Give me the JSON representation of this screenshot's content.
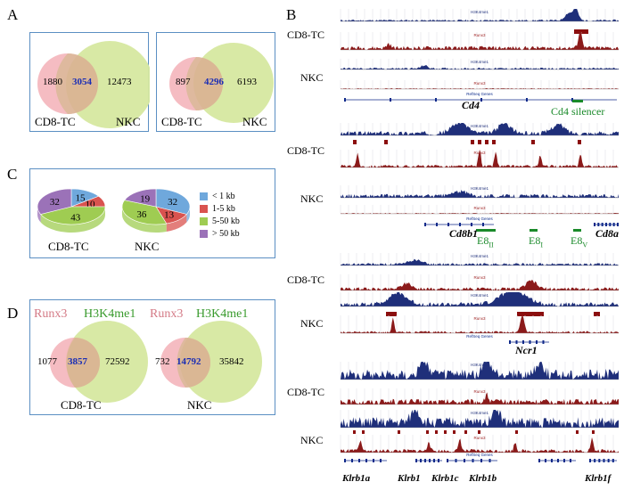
{
  "panels": {
    "A": "A",
    "B": "B",
    "C": "C",
    "D": "D"
  },
  "panelA": {
    "left": {
      "only": "1880",
      "overlap": "3054",
      "other": "12473",
      "label_left": "CD8-TC",
      "label_right": "NKC"
    },
    "right": {
      "only": "897",
      "overlap": "4296",
      "other": "6193",
      "label_left": "CD8-TC",
      "label_right": "NKC"
    }
  },
  "panelC": {
    "legend": [
      "< 1 kb",
      "1-5 kb",
      "5-50 kb",
      "> 50 kb"
    ],
    "colors": [
      "#6fa8dc",
      "#d9534f",
      "#9fcc52",
      "#9b72b8"
    ],
    "pies": [
      {
        "label": "CD8-TC",
        "values": [
          15,
          10,
          43,
          32
        ]
      },
      {
        "label": "NKC",
        "values": [
          32,
          13,
          36,
          19
        ]
      }
    ]
  },
  "panelD": {
    "title_a": "Runx3",
    "title_b": "H3K4me1",
    "left": {
      "only": "1077",
      "overlap": "3857",
      "other": "72592",
      "label": "CD8-TC"
    },
    "right": {
      "only": "732",
      "overlap": "14792",
      "other": "35842",
      "label": "NKC"
    }
  },
  "panelB": {
    "row_labels": [
      "CD8-TC",
      "NKC",
      "CD8-TC",
      "NKC",
      "CD8-TC",
      "NKC",
      "CD8-TC",
      "NKC"
    ],
    "track_names": {
      "h3": "H3K4me1",
      "runx": "Runx3",
      "refseq": "RefSeq Genes"
    },
    "genes": {
      "cd4": "Cd4",
      "cd4_sil": "Cd4 silencer",
      "cd8b1": "Cd8b1",
      "cd8a": "Cd8a",
      "e8ii": "E8",
      "e8ii_sub": "II",
      "e8i": "E8",
      "e8i_sub": "I",
      "e8v": "E8",
      "e8v_sub": "V",
      "ncr1": "Ncr1",
      "klrb1a": "Klrb1a",
      "klrb1": "Klrb1",
      "klrb1c": "Klrb1c",
      "klrb1b": "Klrb1b",
      "klrb1f": "Klrb1f"
    }
  }
}
